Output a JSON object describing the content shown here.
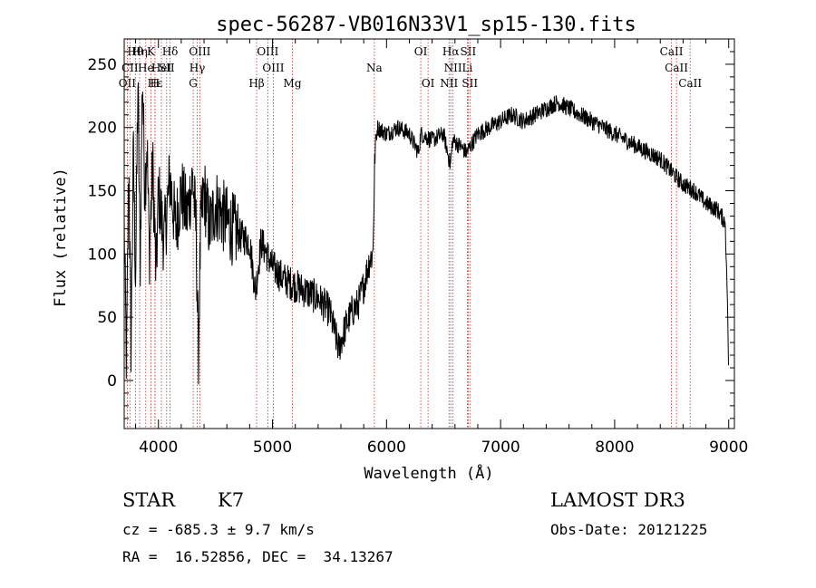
{
  "chart_data": {
    "type": "line",
    "title": "spec-56287-VB016N33V1_sp15-130.fits",
    "xlabel": "Wavelength (Å)",
    "ylabel": "Flux (relative)",
    "xlim": [
      3700,
      9050
    ],
    "ylim": [
      -38,
      270
    ],
    "xticks": [
      4000,
      5000,
      6000,
      7000,
      8000,
      9000
    ],
    "yticks": [
      0,
      50,
      100,
      150,
      200,
      250
    ],
    "spectrum_anchors": [
      [
        3700,
        120
      ],
      [
        3720,
        10
      ],
      [
        3740,
        170
      ],
      [
        3760,
        30
      ],
      [
        3780,
        180
      ],
      [
        3800,
        80
      ],
      [
        3820,
        235
      ],
      [
        3840,
        90
      ],
      [
        3860,
        245
      ],
      [
        3880,
        150
      ],
      [
        3900,
        190
      ],
      [
        3920,
        100
      ],
      [
        3950,
        170
      ],
      [
        3980,
        80
      ],
      [
        4000,
        150
      ],
      [
        4050,
        110
      ],
      [
        4100,
        160
      ],
      [
        4150,
        120
      ],
      [
        4200,
        150
      ],
      [
        4250,
        130
      ],
      [
        4300,
        160
      ],
      [
        4330,
        120
      ],
      [
        4350,
        20
      ],
      [
        4370,
        120
      ],
      [
        4400,
        150
      ],
      [
        4450,
        120
      ],
      [
        4500,
        140
      ],
      [
        4600,
        125
      ],
      [
        4700,
        115
      ],
      [
        4800,
        110
      ],
      [
        4850,
        70
      ],
      [
        4900,
        110
      ],
      [
        4950,
        100
      ],
      [
        5000,
        90
      ],
      [
        5100,
        80
      ],
      [
        5200,
        75
      ],
      [
        5300,
        70
      ],
      [
        5400,
        65
      ],
      [
        5500,
        55
      ],
      [
        5580,
        25
      ],
      [
        5650,
        45
      ],
      [
        5700,
        55
      ],
      [
        5750,
        60
      ],
      [
        5800,
        75
      ],
      [
        5850,
        95
      ],
      [
        5880,
        100
      ],
      [
        5900,
        185
      ],
      [
        5920,
        200
      ],
      [
        6000,
        195
      ],
      [
        6100,
        200
      ],
      [
        6200,
        195
      ],
      [
        6280,
        180
      ],
      [
        6300,
        195
      ],
      [
        6400,
        190
      ],
      [
        6500,
        195
      ],
      [
        6560,
        170
      ],
      [
        6580,
        190
      ],
      [
        6650,
        185
      ],
      [
        6700,
        180
      ],
      [
        6800,
        195
      ],
      [
        6900,
        200
      ],
      [
        7000,
        205
      ],
      [
        7100,
        210
      ],
      [
        7200,
        205
      ],
      [
        7300,
        210
      ],
      [
        7400,
        215
      ],
      [
        7500,
        220
      ],
      [
        7600,
        215
      ],
      [
        7700,
        210
      ],
      [
        7800,
        205
      ],
      [
        7900,
        200
      ],
      [
        8000,
        195
      ],
      [
        8100,
        190
      ],
      [
        8200,
        185
      ],
      [
        8300,
        180
      ],
      [
        8400,
        175
      ],
      [
        8500,
        165
      ],
      [
        8600,
        155
      ],
      [
        8700,
        150
      ],
      [
        8800,
        140
      ],
      [
        8900,
        135
      ],
      [
        8970,
        125
      ],
      [
        8990,
        60
      ],
      [
        9000,
        0
      ]
    ],
    "line_markers": [
      {
        "label": "Hθ",
        "x": 3798,
        "row": 0
      },
      {
        "label": "Hη",
        "x": 3835,
        "row": 0
      },
      {
        "label": "K",
        "x": 3934,
        "row": 0
      },
      {
        "label": "Hδ",
        "x": 4102,
        "row": 0
      },
      {
        "label": "OIII",
        "x": 4363,
        "row": 0
      },
      {
        "label": "OIII",
        "x": 4959,
        "row": 0
      },
      {
        "label": "OI",
        "x": 6300,
        "row": 0
      },
      {
        "label": "Hα",
        "x": 6563,
        "row": 0
      },
      {
        "label": "SII",
        "x": 6716,
        "row": 0
      },
      {
        "label": "CaII",
        "x": 8498,
        "row": 0
      },
      {
        "label": "CII",
        "x": 3750,
        "row": 1
      },
      {
        "label": "He",
        "x": 3889,
        "row": 1
      },
      {
        "label": "HeI",
        "x": 4026,
        "row": 1
      },
      {
        "label": "SII",
        "x": 4072,
        "row": 1
      },
      {
        "label": "Hγ",
        "x": 4340,
        "row": 1
      },
      {
        "label": "OIII",
        "x": 5007,
        "row": 1
      },
      {
        "label": "Na",
        "x": 5893,
        "row": 1
      },
      {
        "label": "NII",
        "x": 6583,
        "row": 1
      },
      {
        "label": "Li",
        "x": 6708,
        "row": 1
      },
      {
        "label": "CaII",
        "x": 8542,
        "row": 1
      },
      {
        "label": "OII",
        "x": 3727,
        "row": 2
      },
      {
        "label": "Hε",
        "x": 3970,
        "row": 2
      },
      {
        "label": "H",
        "x": 3969,
        "row": 2
      },
      {
        "label": "G",
        "x": 4305,
        "row": 2
      },
      {
        "label": "Hβ",
        "x": 4861,
        "row": 2
      },
      {
        "label": "Mg",
        "x": 5175,
        "row": 2
      },
      {
        "label": "OI",
        "x": 6364,
        "row": 2
      },
      {
        "label": "NII",
        "x": 6548,
        "row": 2
      },
      {
        "label": "SII",
        "x": 6731,
        "row": 2
      },
      {
        "label": "CaII",
        "x": 8662,
        "row": 2
      }
    ]
  },
  "info": {
    "class": "STAR",
    "subclass": "K7",
    "survey": "LAMOST DR3",
    "cz": "cz = -685.3 ± 9.7 km/s",
    "obs_date": "Obs-Date: 20121225",
    "radec": "RA =  16.52856, DEC =  34.13267"
  }
}
